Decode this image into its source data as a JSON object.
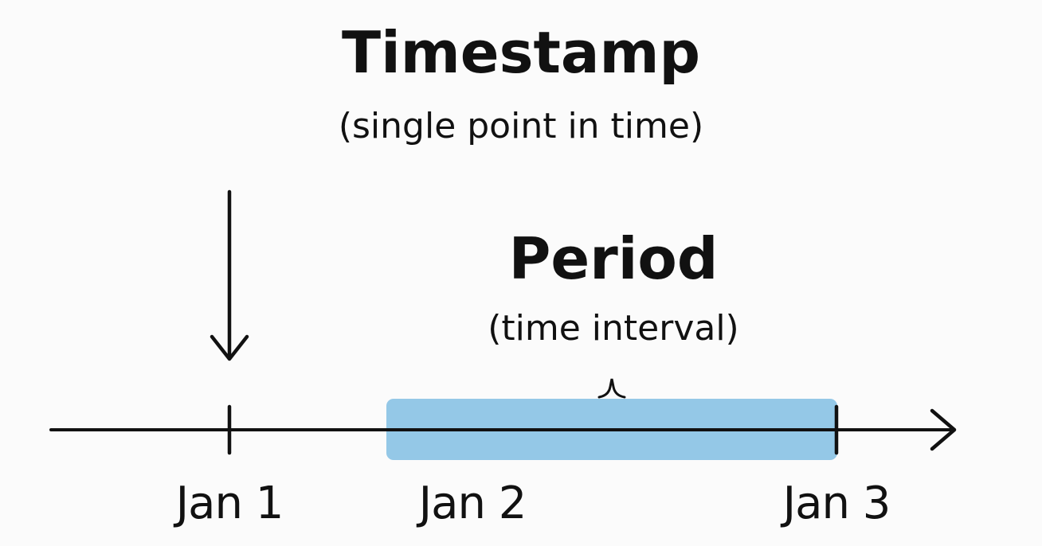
{
  "timestamp": {
    "title": "Timestamp",
    "subtitle": "(single point in time)"
  },
  "period": {
    "title": "Period",
    "subtitle": "(time interval)",
    "fill_color": "#8ec5e6"
  },
  "timeline": {
    "ticks": [
      "Jan 1",
      "Jan 2",
      "Jan 3"
    ],
    "line_color": "#111111"
  }
}
